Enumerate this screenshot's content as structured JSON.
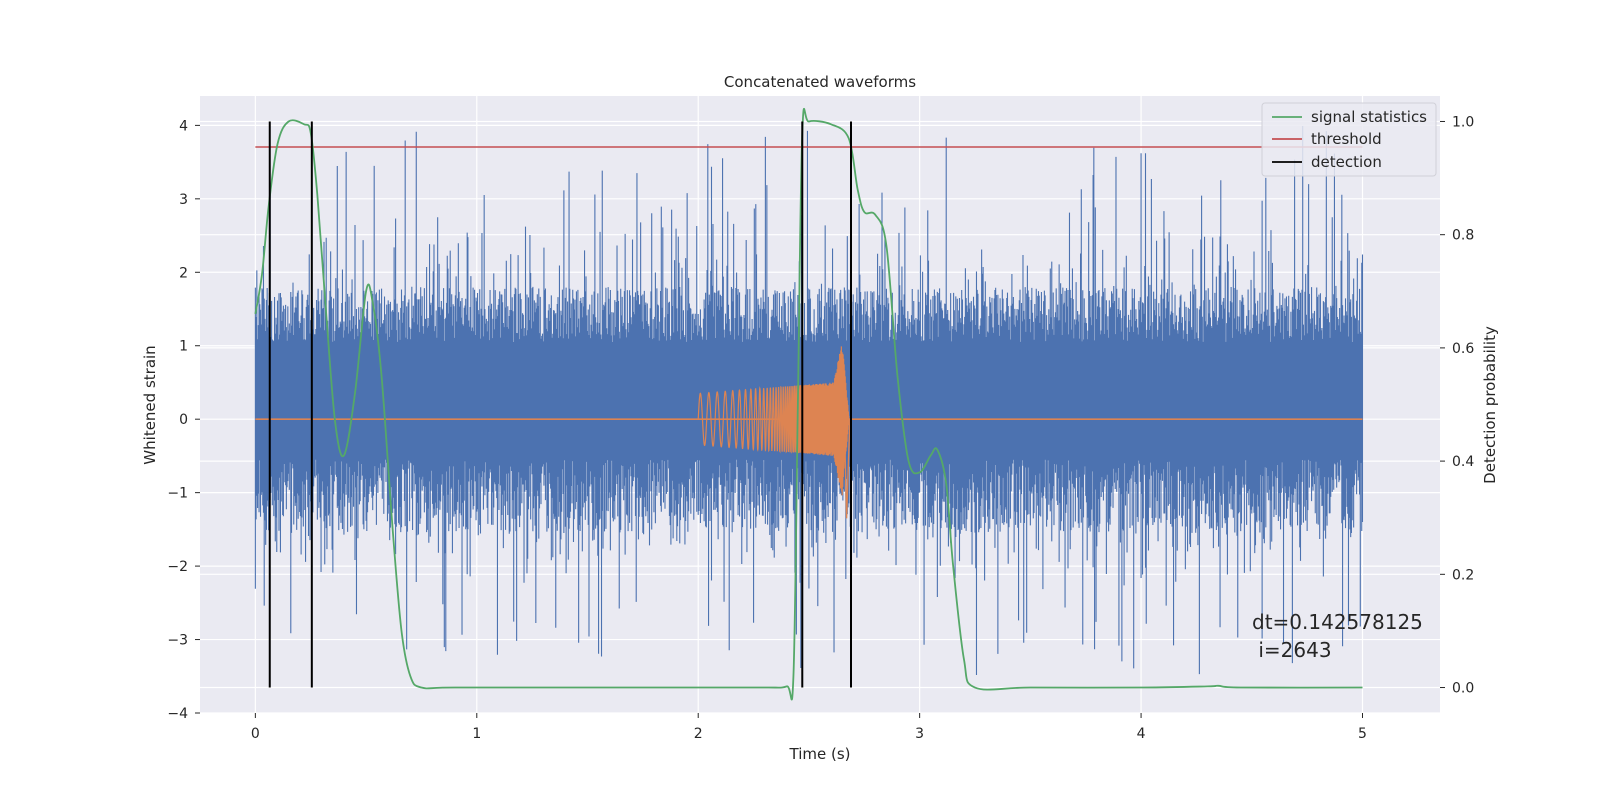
{
  "chart_data": {
    "type": "line",
    "title": "Concatenated waveforms",
    "xlabel": "Time (s)",
    "ylabel_left": "Whitened strain",
    "ylabel_right": "Detection probability",
    "xlim": [
      -0.25,
      5.35
    ],
    "ylim_left": [
      -4.0,
      4.4
    ],
    "ylim_right": [
      -0.045,
      1.045
    ],
    "xticks": [
      0,
      1,
      2,
      3,
      4,
      5
    ],
    "xtick_labels": [
      "0",
      "1",
      "2",
      "3",
      "4",
      "5"
    ],
    "yticks_left": [
      -4,
      -3,
      -2,
      -1,
      0,
      1,
      2,
      3,
      4
    ],
    "ytick_labels_left": [
      "−4",
      "−3",
      "−2",
      "−1",
      "0",
      "1",
      "2",
      "3",
      "4"
    ],
    "yticks_right": [
      0.0,
      0.2,
      0.4,
      0.6,
      0.8,
      1.0
    ],
    "ytick_labels_right": [
      "0.0",
      "0.2",
      "0.4",
      "0.6",
      "0.8",
      "1.0"
    ],
    "grid": true,
    "legend_position": "top-right",
    "legend": [
      "signal statistics",
      "threshold",
      "detection"
    ],
    "annotation": [
      "dt=0.142578125",
      " i=2643"
    ],
    "colors": {
      "noise": "#4c72b0",
      "waveform": "#dd8452",
      "signal_statistics": "#55a868",
      "threshold": "#c44e52",
      "detection": "#000000",
      "axes_bg": "#eaeaf2",
      "grid": "#ffffff"
    },
    "series": [
      {
        "name": "whitened strain",
        "axis": "left",
        "description_x_range": [
          0,
          5
        ],
        "envelope": {
          "typical_low": -1.5,
          "typical_high": 1.6,
          "peak_high": 4.0,
          "peak_low": -3.6
        }
      },
      {
        "name": "waveform",
        "axis": "left",
        "segments": [
          {
            "x": [
              2.0,
              2.61,
              2.65,
              2.68
            ],
            "y": [
              0.35,
              0.5,
              1.05,
              0.05
            ]
          }
        ],
        "baseline": 0
      },
      {
        "name": "signal statistics",
        "axis": "right",
        "x": [
          0.0,
          0.03,
          0.06,
          0.1,
          0.15,
          0.22,
          0.25,
          0.28,
          0.32,
          0.36,
          0.4,
          0.45,
          0.5,
          0.53,
          0.57,
          0.62,
          0.66,
          0.7,
          0.75,
          0.9,
          1.5,
          2.0,
          2.3,
          2.4,
          2.43,
          2.45,
          2.47,
          2.5,
          2.6,
          2.68,
          2.72,
          2.75,
          2.8,
          2.85,
          2.9,
          2.95,
          3.0,
          3.05,
          3.08,
          3.12,
          3.15,
          3.2,
          3.25,
          3.5,
          4.0,
          4.3,
          4.35,
          4.45,
          5.0
        ],
        "y": [
          0.66,
          0.73,
          0.85,
          0.96,
          1.0,
          0.995,
          0.98,
          0.87,
          0.66,
          0.47,
          0.41,
          0.52,
          0.7,
          0.68,
          0.55,
          0.28,
          0.1,
          0.02,
          0.0,
          0.0,
          0.0,
          0.0,
          0.0,
          0.002,
          0.02,
          0.5,
          0.98,
          1.0,
          0.995,
          0.97,
          0.88,
          0.84,
          0.835,
          0.78,
          0.55,
          0.4,
          0.38,
          0.41,
          0.42,
          0.36,
          0.22,
          0.05,
          0.0,
          0.0,
          0.0,
          0.002,
          0.003,
          0.0,
          0.0
        ]
      },
      {
        "name": "threshold",
        "axis": "right",
        "x": [
          0.0,
          5.0
        ],
        "y": [
          0.955,
          0.955
        ]
      },
      {
        "name": "detection",
        "axis": "right",
        "x": [
          0.065,
          0.255,
          2.47,
          2.69
        ],
        "y_range": [
          0.0,
          1.0
        ]
      }
    ]
  }
}
